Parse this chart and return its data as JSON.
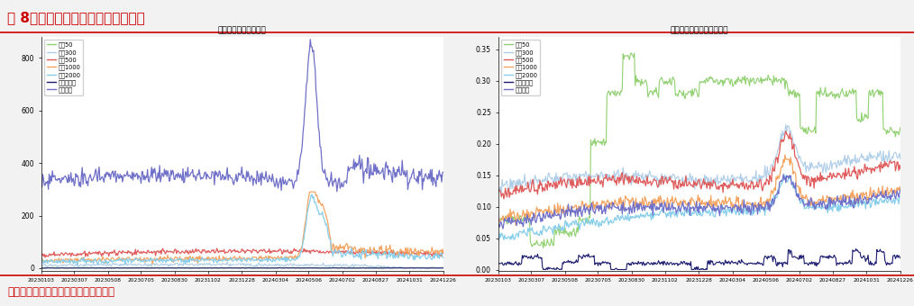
{
  "title_main": "图 8、各宽基指数破净个股数和占比",
  "title_left": "各宽基指数破净个股数",
  "title_right": "各宽基指数破净个股数占比",
  "footer": "数据来源：聚宽，江海证券研究发展部",
  "series_names": [
    "上证50",
    "沪深300",
    "中证500",
    "中证1000",
    "中证2000",
    "创业板指数",
    "中证全指"
  ],
  "series_colors_left": [
    "#90d070",
    "#aecde8",
    "#e05c5c",
    "#f4a460",
    "#87ceeb",
    "#1a1a6e",
    "#7070c8"
  ],
  "series_colors_right": [
    "#90d070",
    "#aecde8",
    "#e05c5c",
    "#f4a460",
    "#87ceeb",
    "#1a1a6e",
    "#7070c8"
  ],
  "x_labels": [
    "20230103",
    "20230307",
    "20230508",
    "20230705",
    "20230830",
    "20231102",
    "20231228",
    "20240304",
    "20240506",
    "20240702",
    "20240827",
    "20241031",
    "20241226"
  ],
  "n_points": 500,
  "header_color": "#cc0000",
  "bg_color": "#f2f2f2"
}
